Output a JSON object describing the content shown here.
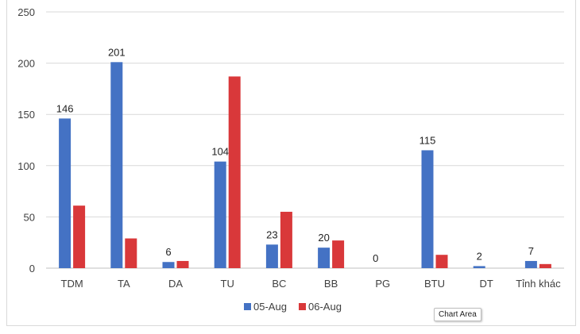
{
  "chart_data": {
    "type": "bar",
    "title": "",
    "xlabel": "",
    "ylabel": "",
    "categories": [
      "TDM",
      "TA",
      "DA",
      "TU",
      "BC",
      "BB",
      "PG",
      "BTU",
      "DT",
      "Tỉnh khác"
    ],
    "series": [
      {
        "name": "05-Aug",
        "values": [
          146,
          201,
          6,
          104,
          23,
          20,
          0,
          115,
          2,
          7
        ],
        "color": "#4472c4",
        "show_labels": true
      },
      {
        "name": "06-Aug",
        "values": [
          61,
          29,
          7,
          187,
          55,
          27,
          0,
          13,
          0,
          4
        ],
        "color": "#d9383a",
        "show_labels": false
      }
    ],
    "ylim": [
      0,
      250
    ],
    "yticks": [
      0,
      50,
      100,
      150,
      200,
      250
    ],
    "grid": true,
    "legend": "bottom"
  },
  "tooltip": {
    "text": "Chart Area"
  }
}
